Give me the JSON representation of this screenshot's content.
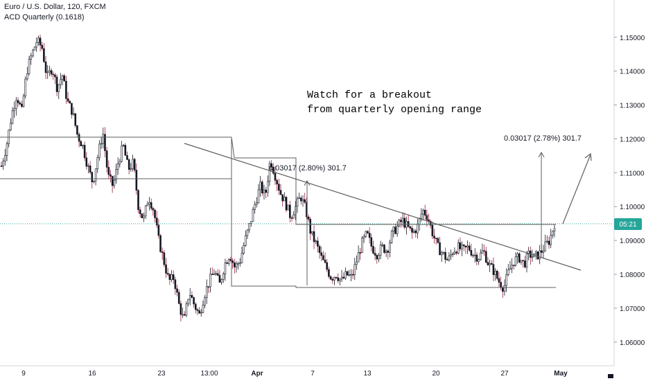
{
  "header": {
    "symbol_line": "Euro / U.S. Dollar, 120, FXCM",
    "indicator_line": "ACD Quarterly (0.1618)"
  },
  "price_tag": {
    "text": "05:21",
    "price": 1.0953,
    "color": "#26a69a"
  },
  "annotations": {
    "note_line1": "Watch for a breakout",
    "note_line2": "from quarterly opening range",
    "measure1": "0.03017 (2.80%) 301.7",
    "measure2": "0.03017 (2.78%) 301.7"
  },
  "colors": {
    "up_candle": "#131722",
    "down_candle": "#131722",
    "wick_down": "#9c1b3b",
    "line": "#5d5d5d",
    "dotted": "#26a69a"
  },
  "chart_data": {
    "type": "candlestick",
    "title": "Euro / U.S. Dollar, 120, FXCM",
    "y_axis": {
      "ticks": [
        1.06,
        1.07,
        1.08,
        1.09,
        1.1,
        1.11,
        1.12,
        1.13,
        1.14,
        1.15
      ],
      "tick_labels": [
        "1.06000",
        "1.07000",
        "1.08000",
        "1.09000",
        "1.10000",
        "1.11000",
        "1.12000",
        "1.13000",
        "1.14000",
        "1.15000"
      ],
      "range": [
        1.053,
        1.161
      ]
    },
    "x_axis": {
      "tick_labels": [
        "9",
        "16",
        "23",
        "13:00",
        "Apr",
        "7",
        "13",
        "20",
        "27",
        "May"
      ]
    },
    "series_path": [
      1.112,
      1.118,
      1.127,
      1.133,
      1.128,
      1.14,
      1.145,
      1.149,
      1.147,
      1.138,
      1.141,
      1.135,
      1.139,
      1.131,
      1.128,
      1.121,
      1.118,
      1.112,
      1.107,
      1.115,
      1.122,
      1.109,
      1.106,
      1.113,
      1.118,
      1.111,
      1.113,
      1.1,
      1.096,
      1.103,
      1.099,
      1.09,
      1.084,
      1.078,
      1.079,
      1.071,
      1.066,
      1.075,
      1.071,
      1.068,
      1.074,
      1.078,
      1.081,
      1.077,
      1.083,
      1.086,
      1.082,
      1.084,
      1.09,
      1.095,
      1.101,
      1.106,
      1.103,
      1.114,
      1.109,
      1.104,
      1.101,
      1.097,
      1.1,
      1.103,
      1.099,
      1.092,
      1.089,
      1.085,
      1.082,
      1.079,
      1.08,
      1.078,
      1.08,
      1.079,
      1.084,
      1.089,
      1.092,
      1.088,
      1.086,
      1.088,
      1.087,
      1.092,
      1.094,
      1.096,
      1.094,
      1.092,
      1.094,
      1.099,
      1.097,
      1.092,
      1.088,
      1.086,
      1.084,
      1.087,
      1.088,
      1.087,
      1.088,
      1.086,
      1.085,
      1.087,
      1.083,
      1.081,
      1.078,
      1.076,
      1.081,
      1.084,
      1.085,
      1.083,
      1.086,
      1.085,
      1.086,
      1.088,
      1.09,
      1.095
    ],
    "range_box_levels": {
      "first_quarter_high": 1.1205,
      "first_quarter_low": 1.1085,
      "second_quarter_high": 1.1145,
      "second_quarter_low": 1.0768,
      "opening_range_level": 1.0953
    },
    "measurements": [
      {
        "label": "0.03017 (2.80%) 301.7",
        "value": 0.03017,
        "percent": 2.8,
        "pips": 301.7
      },
      {
        "label": "0.03017 (2.78%) 301.7",
        "value": 0.03017,
        "percent": 2.78,
        "pips": 301.7
      }
    ],
    "last_price": 1.0953,
    "grid": false
  }
}
